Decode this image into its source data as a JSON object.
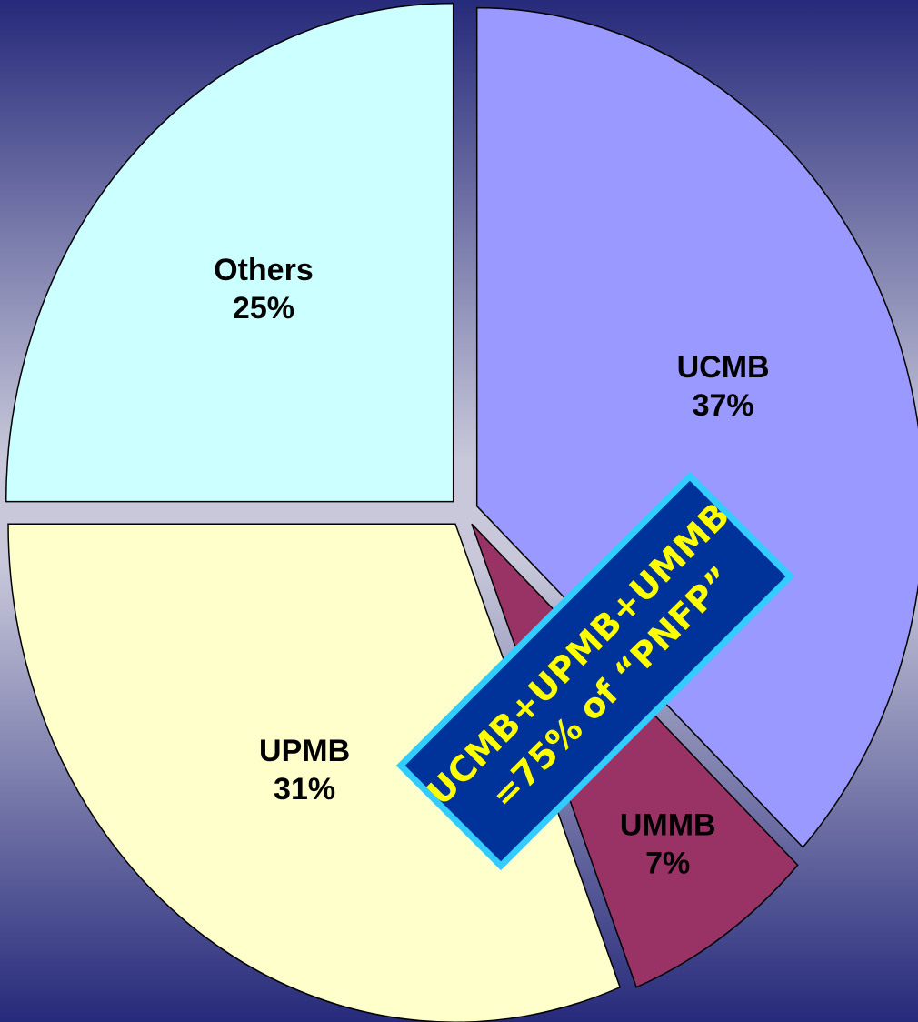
{
  "chart_data": {
    "type": "pie",
    "categories": [
      "UCMB",
      "UMMB",
      "UPMB",
      "Others"
    ],
    "values": [
      37,
      7,
      31,
      25
    ],
    "value_labels": [
      "37%",
      "7%",
      "31%",
      "25%"
    ],
    "colors": [
      "#9999ff",
      "#993366",
      "#ffffcc",
      "#ccffff"
    ],
    "annotation": [
      "UCMB+UPMB+UMMB",
      "=75% of “PNFP”"
    ]
  }
}
